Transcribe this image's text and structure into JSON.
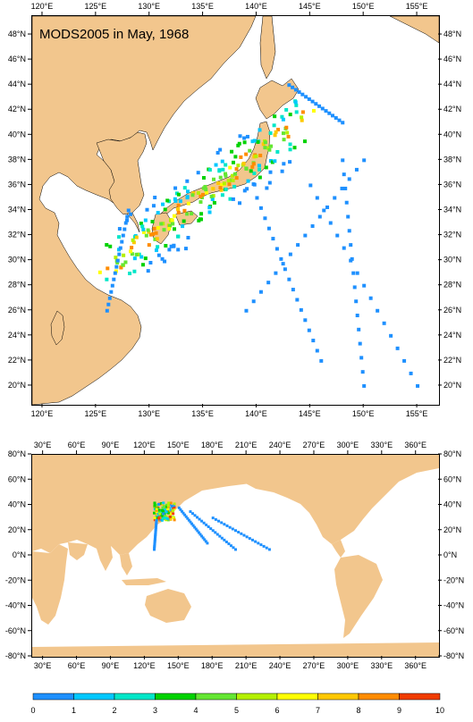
{
  "title": "MODS2005 in May, 1968",
  "top_map": {
    "x_ticks": [
      "120°E",
      "125°E",
      "130°E",
      "135°E",
      "140°E",
      "145°E",
      "150°E",
      "155°E"
    ],
    "y_ticks": [
      "48°N",
      "46°N",
      "44°N",
      "42°N",
      "40°N",
      "38°N",
      "36°N",
      "34°N",
      "32°N",
      "30°N",
      "28°N",
      "26°N",
      "24°N",
      "22°N",
      "20°N"
    ],
    "x_range": [
      119,
      157
    ],
    "y_range": [
      18.5,
      49.5
    ]
  },
  "bottom_map": {
    "x_ticks": [
      "30°E",
      "60°E",
      "90°E",
      "120°E",
      "150°E",
      "180°E",
      "210°E",
      "240°E",
      "270°E",
      "300°E",
      "330°E",
      "360°E"
    ],
    "y_ticks": [
      "80°N",
      "60°N",
      "40°N",
      "20°N",
      "0°N",
      "-20°N",
      "-40°N",
      "-60°N",
      "-80°N"
    ],
    "x_range": [
      20,
      380
    ],
    "y_range": [
      -80,
      80
    ]
  },
  "colorbar": {
    "labels": [
      "0",
      "1",
      "2",
      "3",
      "4",
      "5",
      "6",
      "7",
      "8",
      "9",
      "10"
    ],
    "colors": [
      "#1a50e6",
      "#1e90ff",
      "#00c8ff",
      "#00e6c8",
      "#00d200",
      "#64e632",
      "#b4f000",
      "#ffff00",
      "#ffc800",
      "#ff8c00",
      "#f03c00"
    ]
  },
  "colors": {
    "land": "#f2c68d",
    "coast": "#000000"
  }
}
